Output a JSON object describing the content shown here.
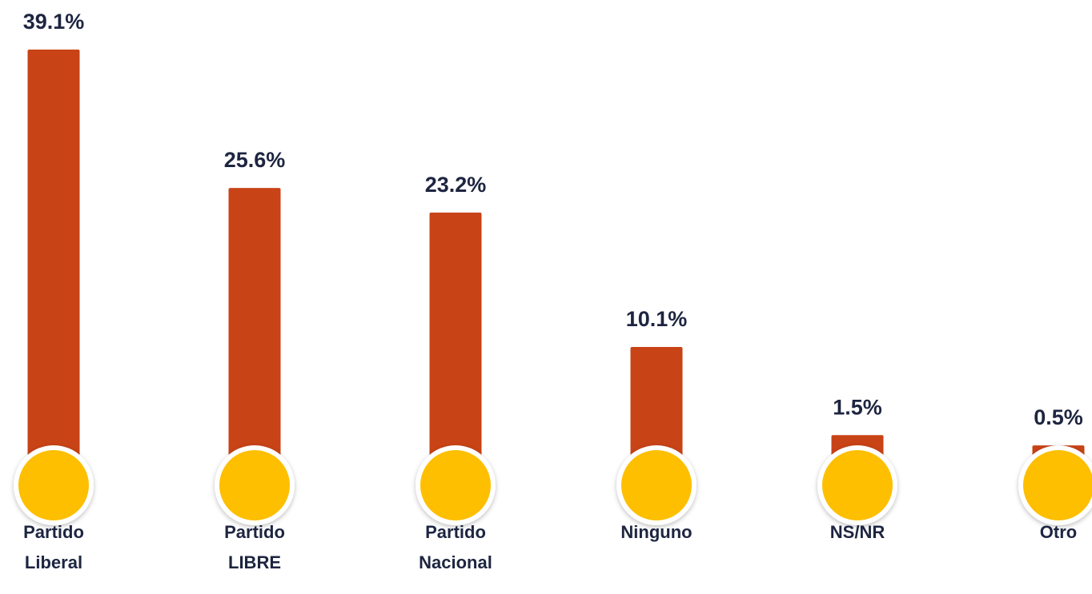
{
  "chart_data": {
    "type": "bar",
    "categories": [
      "Partido Liberal",
      "Partido LIBRE",
      "Partido Nacional",
      "Ninguno",
      "NS/NR",
      "Otro"
    ],
    "values": [
      39.1,
      25.6,
      23.2,
      10.1,
      1.5,
      0.5
    ],
    "value_labels": [
      "39.1%",
      "25.6%",
      "23.2%",
      "10.1%",
      "1.5%",
      "0.5%"
    ],
    "color": "#c84316",
    "marker_color": "#fdbf00"
  }
}
